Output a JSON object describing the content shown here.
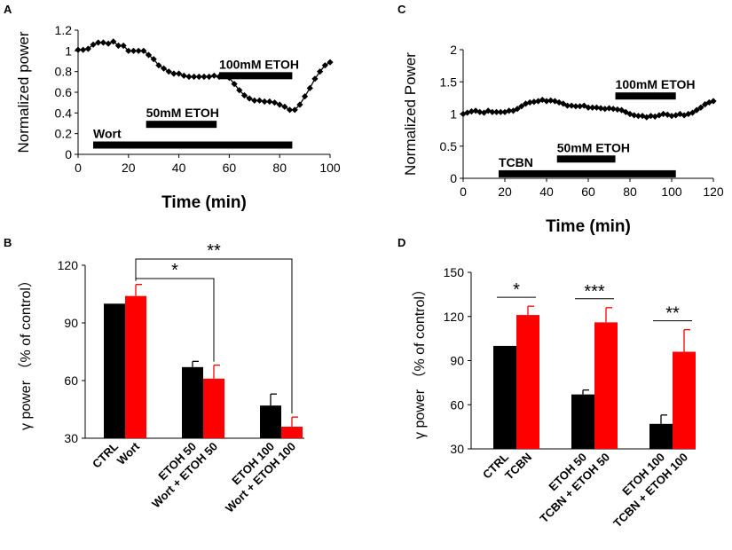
{
  "colors": {
    "black": "#000000",
    "red": "#ff0000",
    "marker": "#000000"
  },
  "chart_data": [
    {
      "panel": "A",
      "type": "line",
      "xlabel": "Time (min)",
      "ylabel": "Normalized power",
      "xlim": [
        0,
        100
      ],
      "ylim": [
        0,
        1.2
      ],
      "xticks": [
        "0",
        "20",
        "40",
        "60",
        "80",
        "100"
      ],
      "yticks": [
        "0",
        "0.2",
        "0.4",
        "0.6",
        "0.8",
        "1",
        "1.2"
      ],
      "xtick_values": [
        0,
        20,
        40,
        60,
        80,
        100
      ],
      "ytick_values": [
        0,
        0.2,
        0.4,
        0.6,
        0.8,
        1.0,
        1.2
      ],
      "series": [
        {
          "name": "normalized power",
          "x": [
            0,
            2,
            4,
            6,
            8,
            10,
            12,
            14,
            16,
            18,
            20,
            22,
            24,
            26,
            28,
            30,
            32,
            34,
            36,
            38,
            40,
            42,
            44,
            46,
            48,
            50,
            52,
            54,
            56,
            58,
            60,
            62,
            64,
            66,
            68,
            70,
            72,
            74,
            76,
            78,
            80,
            82,
            84,
            86,
            88,
            90,
            92,
            94,
            96,
            98,
            100
          ],
          "y": [
            1.01,
            1.01,
            1.02,
            1.06,
            1.08,
            1.08,
            1.07,
            1.09,
            1.05,
            1.05,
            1.0,
            1.0,
            1.0,
            1.0,
            0.96,
            0.92,
            0.86,
            0.83,
            0.8,
            0.78,
            0.78,
            0.76,
            0.75,
            0.75,
            0.75,
            0.75,
            0.75,
            0.76,
            0.75,
            0.76,
            0.74,
            0.68,
            0.62,
            0.57,
            0.54,
            0.52,
            0.52,
            0.51,
            0.51,
            0.5,
            0.48,
            0.46,
            0.43,
            0.43,
            0.48,
            0.56,
            0.64,
            0.73,
            0.8,
            0.86,
            0.89
          ]
        }
      ],
      "bars": [
        {
          "label": "Wort",
          "start": 6,
          "end": 85,
          "y": 0.09
        },
        {
          "label": "50mM ETOH",
          "start": 27,
          "end": 55,
          "y": 0.29
        },
        {
          "label": "100mM ETOH",
          "start": 56,
          "end": 85,
          "y": 0.76
        }
      ]
    },
    {
      "panel": "C",
      "type": "line",
      "xlabel": "Time (min)",
      "ylabel": "Normalized Power",
      "xlim": [
        0,
        120
      ],
      "ylim": [
        0,
        2
      ],
      "xticks": [
        "0",
        "20",
        "40",
        "60",
        "80",
        "100",
        "120"
      ],
      "yticks": [
        "0",
        "0.5",
        "1",
        "1.5",
        "2"
      ],
      "xtick_values": [
        0,
        20,
        40,
        60,
        80,
        100,
        120
      ],
      "ytick_values": [
        0,
        0.5,
        1.0,
        1.5,
        2.0
      ],
      "series": [
        {
          "name": "normalized power",
          "x": [
            0,
            2,
            4,
            6,
            8,
            10,
            12,
            14,
            16,
            18,
            20,
            22,
            24,
            26,
            28,
            30,
            32,
            34,
            36,
            38,
            40,
            42,
            44,
            46,
            48,
            50,
            52,
            54,
            56,
            58,
            60,
            62,
            64,
            66,
            68,
            70,
            72,
            74,
            76,
            78,
            80,
            82,
            84,
            86,
            88,
            90,
            92,
            94,
            96,
            98,
            100,
            102,
            104,
            106,
            108,
            110,
            112,
            114,
            116,
            118,
            120
          ],
          "y": [
            1.0,
            1.02,
            1.04,
            1.05,
            1.03,
            1.02,
            1.05,
            1.03,
            1.03,
            1.03,
            1.03,
            1.05,
            1.05,
            1.08,
            1.12,
            1.16,
            1.18,
            1.19,
            1.2,
            1.22,
            1.2,
            1.21,
            1.2,
            1.18,
            1.16,
            1.13,
            1.13,
            1.12,
            1.12,
            1.13,
            1.1,
            1.1,
            1.1,
            1.09,
            1.08,
            1.09,
            1.08,
            1.07,
            1.06,
            1.03,
            1.0,
            0.98,
            0.97,
            0.97,
            0.95,
            0.97,
            0.96,
            0.98,
            1.0,
            0.99,
            0.97,
            0.98,
            1.0,
            0.98,
            1.0,
            1.02,
            1.06,
            1.1,
            1.15,
            1.18,
            1.2
          ]
        }
      ],
      "bars": [
        {
          "label": "TCBN",
          "start": 17,
          "end": 102,
          "y": 0.07
        },
        {
          "label": "50mM ETOH",
          "start": 45,
          "end": 73,
          "y": 0.3
        },
        {
          "label": "100mM ETOH",
          "start": 73,
          "end": 102,
          "y": 1.28
        }
      ]
    },
    {
      "panel": "B",
      "type": "bar",
      "ylabel": "γ power （% of control）",
      "ylim": [
        30,
        120
      ],
      "yticks": [
        "30",
        "60",
        "90",
        "120"
      ],
      "ytick_values": [
        30,
        60,
        90,
        120
      ],
      "categories": [
        "CTRL",
        "Wort",
        "ETOH  50",
        "Wort + ETOH  50",
        "ETOH  100",
        "Wort + ETOH  100"
      ],
      "values": [
        100,
        104,
        67,
        61,
        47,
        36
      ],
      "errors": [
        0,
        6,
        3,
        7,
        6,
        5
      ],
      "colors": [
        "black",
        "red",
        "black",
        "red",
        "black",
        "red"
      ],
      "significance": [
        {
          "label": "*",
          "from": 1,
          "to": 3
        },
        {
          "label": "**",
          "from": 1,
          "to": 5
        }
      ]
    },
    {
      "panel": "D",
      "type": "bar",
      "ylabel": "γ power （% of control）",
      "ylim": [
        30,
        150
      ],
      "yticks": [
        "30",
        "60",
        "90",
        "120",
        "150"
      ],
      "ytick_values": [
        30,
        60,
        90,
        120,
        150
      ],
      "categories": [
        "CTRL",
        "TCBN",
        "ETOH  50",
        "TCBN + ETOH 50",
        "ETOH 100",
        "TCBN + ETOH  100"
      ],
      "values": [
        100,
        121,
        67,
        116,
        47,
        96
      ],
      "errors": [
        0,
        6,
        3,
        10,
        6,
        15
      ],
      "colors": [
        "black",
        "red",
        "black",
        "red",
        "black",
        "red"
      ],
      "significance": [
        {
          "label": "*",
          "from": 0,
          "to": 1
        },
        {
          "label": "***",
          "from": 2,
          "to": 3
        },
        {
          "label": "**",
          "from": 4,
          "to": 5
        }
      ]
    }
  ]
}
